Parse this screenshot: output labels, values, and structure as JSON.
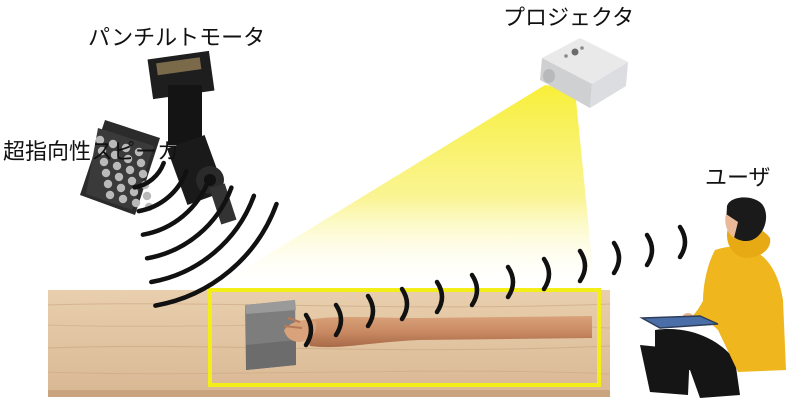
{
  "labels": {
    "pan_tilt_motor": "パンチルトモータ",
    "projector": "プロジェクタ",
    "speaker": "超指向性スピーカ",
    "user": "ユーザ"
  },
  "colors": {
    "beam": "#f7ee2e",
    "highlight_frame": "#f4ee18",
    "sound_wave": "#111111",
    "user_shirt": "#f0b61e",
    "wood": "#e4c7a4"
  }
}
